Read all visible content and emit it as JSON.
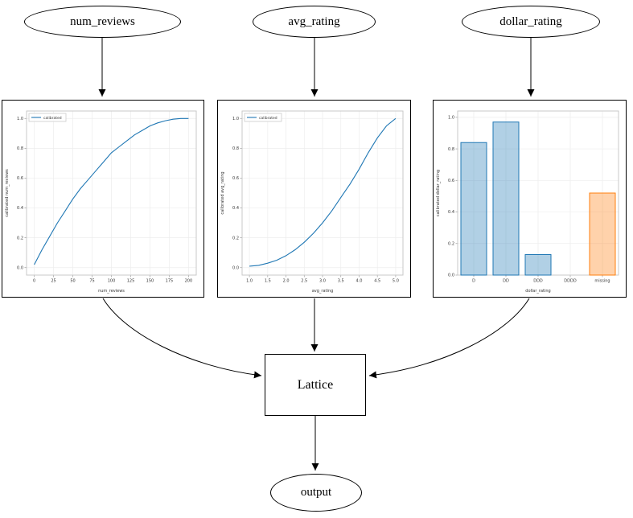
{
  "nodes": {
    "num_reviews": {
      "label": "num_reviews"
    },
    "avg_rating": {
      "label": "avg_rating"
    },
    "dollar_rating": {
      "label": "dollar_rating"
    },
    "lattice": {
      "label": "Lattice"
    },
    "output": {
      "label": "output"
    }
  },
  "colors": {
    "line_blue": "#1f77b4",
    "bar_orange": "#ff7f0e",
    "edge_black": "#000000"
  },
  "chart_data": [
    {
      "type": "line",
      "xlabel": "num_reviews",
      "ylabel": "calibrated num_reviews",
      "legend": "calibrated",
      "color": "#1f77b4",
      "x": [
        0,
        10,
        20,
        30,
        40,
        50,
        60,
        70,
        80,
        90,
        100,
        110,
        120,
        130,
        140,
        150,
        160,
        170,
        180,
        190,
        200
      ],
      "y": [
        0.02,
        0.12,
        0.21,
        0.3,
        0.38,
        0.46,
        0.53,
        0.59,
        0.65,
        0.71,
        0.77,
        0.81,
        0.85,
        0.89,
        0.92,
        0.95,
        0.97,
        0.985,
        0.995,
        1.0,
        1.0
      ],
      "xlim": [
        0,
        200
      ],
      "ylim": [
        0,
        1
      ],
      "xtick_vals": [
        0,
        25,
        50,
        75,
        100,
        125,
        150,
        175,
        200
      ],
      "xtick_labels": [
        "0",
        "25",
        "50",
        "75",
        "100",
        "125",
        "150",
        "175",
        "200"
      ],
      "ytick_vals": [
        0,
        0.2,
        0.4,
        0.6,
        0.8,
        1.0
      ],
      "ytick_labels": [
        "0.0",
        "0.2",
        "0.4",
        "0.6",
        "0.8",
        "1.0"
      ]
    },
    {
      "type": "line",
      "xlabel": "avg_rating",
      "ylabel": "calibrated avg_rating",
      "legend": "calibrated",
      "color": "#1f77b4",
      "x": [
        1.0,
        1.25,
        1.5,
        1.75,
        2.0,
        2.25,
        2.5,
        2.75,
        3.0,
        3.25,
        3.5,
        3.75,
        4.0,
        4.25,
        4.5,
        4.75,
        5.0
      ],
      "y": [
        0.01,
        0.015,
        0.03,
        0.05,
        0.08,
        0.12,
        0.17,
        0.23,
        0.3,
        0.38,
        0.47,
        0.56,
        0.66,
        0.77,
        0.87,
        0.95,
        1.0
      ],
      "xlim": [
        1,
        5
      ],
      "ylim": [
        0,
        1
      ],
      "xtick_vals": [
        1,
        1.5,
        2,
        2.5,
        3,
        3.5,
        4,
        4.5,
        5
      ],
      "xtick_labels": [
        "1.0",
        "1.5",
        "2.0",
        "2.5",
        "3.0",
        "3.5",
        "4.0",
        "4.5",
        "5.0"
      ],
      "ytick_vals": [
        0,
        0.2,
        0.4,
        0.6,
        0.8,
        1.0
      ],
      "ytick_labels": [
        "0.0",
        "0.2",
        "0.4",
        "0.6",
        "0.8",
        "1.0"
      ]
    },
    {
      "type": "bar",
      "xlabel": "dollar_rating",
      "ylabel": "calibrated dollar_rating",
      "categories": [
        "D",
        "DD",
        "DDD",
        "DDDD",
        "missing"
      ],
      "values": [
        0.84,
        0.97,
        0.13,
        0.0,
        0.52
      ],
      "bar_colors": [
        "#1f77b4",
        "#1f77b4",
        "#1f77b4",
        "#1f77b4",
        "#ff7f0e"
      ],
      "ylim": [
        0,
        1
      ],
      "ytick_vals": [
        0,
        0.2,
        0.4,
        0.6,
        0.8,
        1.0
      ],
      "ytick_labels": [
        "0.0",
        "0.2",
        "0.4",
        "0.6",
        "0.8",
        "1.0"
      ]
    }
  ]
}
